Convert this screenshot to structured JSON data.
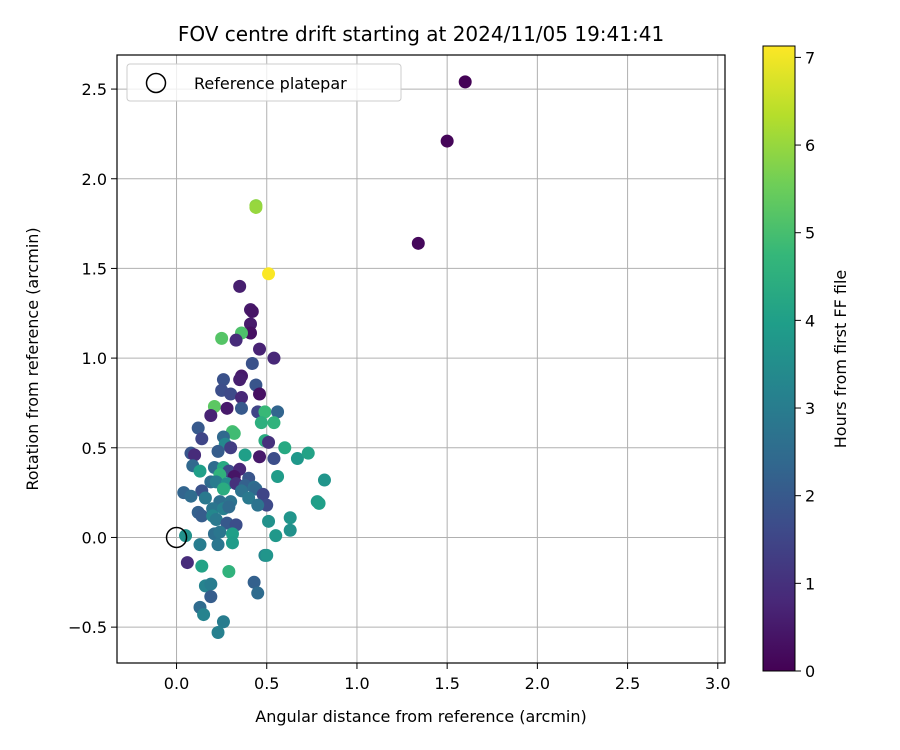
{
  "chart_data": {
    "type": "scatter",
    "title": "FOV centre drift starting at 2024/11/05 19:41:41",
    "xlabel": "Angular distance from reference (arcmin)",
    "ylabel": "Rotation from reference (arcmin)",
    "xlim": [
      -0.33,
      3.04
    ],
    "ylim": [
      -0.7,
      2.69
    ],
    "xticks": [
      0.0,
      0.5,
      1.0,
      1.5,
      2.0,
      2.5,
      3.0
    ],
    "xtick_labels": [
      "0.0",
      "0.5",
      "1.0",
      "1.5",
      "2.0",
      "2.5",
      "3.0"
    ],
    "yticks": [
      -0.5,
      0.0,
      0.5,
      1.0,
      1.5,
      2.0,
      2.5
    ],
    "ytick_labels": [
      "−0.5",
      "0.0",
      "0.5",
      "1.0",
      "1.5",
      "2.0",
      "2.5"
    ],
    "grid": true,
    "legend": {
      "placement": "top-left",
      "entries": [
        "Reference platepar"
      ]
    },
    "reference_point": {
      "x": 0.0,
      "y": 0.0
    },
    "colorbar": {
      "label": "Hours from first FF file",
      "range": [
        0,
        7.13
      ],
      "ticks": [
        0,
        1,
        2,
        3,
        4,
        5,
        6,
        7
      ],
      "tick_labels": [
        "0",
        "1",
        "2",
        "3",
        "4",
        "5",
        "6",
        "7"
      ],
      "colormap": "viridis"
    },
    "points": [
      {
        "x": 1.6,
        "y": 2.54,
        "c": 0.05
      },
      {
        "x": 1.5,
        "y": 2.21,
        "c": 0.1
      },
      {
        "x": 1.34,
        "y": 1.64,
        "c": 0.15
      },
      {
        "x": 0.44,
        "y": 1.85,
        "c": 5.9
      },
      {
        "x": 0.44,
        "y": 1.84,
        "c": 6.0
      },
      {
        "x": 0.51,
        "y": 1.47,
        "c": 7.1
      },
      {
        "x": 0.35,
        "y": 1.4,
        "c": 0.6
      },
      {
        "x": 0.41,
        "y": 1.27,
        "c": 0.5
      },
      {
        "x": 0.42,
        "y": 1.26,
        "c": 0.4
      },
      {
        "x": 0.41,
        "y": 1.19,
        "c": 0.5
      },
      {
        "x": 0.41,
        "y": 1.14,
        "c": 0.3
      },
      {
        "x": 0.36,
        "y": 1.14,
        "c": 5.1
      },
      {
        "x": 0.25,
        "y": 1.11,
        "c": 5.2
      },
      {
        "x": 0.33,
        "y": 1.1,
        "c": 0.9
      },
      {
        "x": 0.46,
        "y": 1.05,
        "c": 0.7
      },
      {
        "x": 0.54,
        "y": 1.0,
        "c": 0.8
      },
      {
        "x": 0.42,
        "y": 0.97,
        "c": 1.8
      },
      {
        "x": 0.36,
        "y": 0.9,
        "c": 0.5
      },
      {
        "x": 0.35,
        "y": 0.88,
        "c": 0.6
      },
      {
        "x": 0.26,
        "y": 0.88,
        "c": 1.8
      },
      {
        "x": 0.25,
        "y": 0.82,
        "c": 1.7
      },
      {
        "x": 0.3,
        "y": 0.8,
        "c": 1.6
      },
      {
        "x": 0.44,
        "y": 0.85,
        "c": 1.9
      },
      {
        "x": 0.46,
        "y": 0.8,
        "c": 0.3
      },
      {
        "x": 0.36,
        "y": 0.78,
        "c": 0.8
      },
      {
        "x": 0.21,
        "y": 0.73,
        "c": 5.3
      },
      {
        "x": 0.28,
        "y": 0.72,
        "c": 0.5
      },
      {
        "x": 0.36,
        "y": 0.72,
        "c": 2.0
      },
      {
        "x": 0.45,
        "y": 0.7,
        "c": 1.5
      },
      {
        "x": 0.49,
        "y": 0.7,
        "c": 4.8
      },
      {
        "x": 0.56,
        "y": 0.7,
        "c": 2.3
      },
      {
        "x": 0.19,
        "y": 0.68,
        "c": 0.7
      },
      {
        "x": 0.47,
        "y": 0.64,
        "c": 4.5
      },
      {
        "x": 0.54,
        "y": 0.64,
        "c": 4.6
      },
      {
        "x": 0.12,
        "y": 0.61,
        "c": 2.0
      },
      {
        "x": 0.31,
        "y": 0.59,
        "c": 5.0
      },
      {
        "x": 0.32,
        "y": 0.58,
        "c": 4.9
      },
      {
        "x": 0.26,
        "y": 0.56,
        "c": 2.4
      },
      {
        "x": 0.14,
        "y": 0.55,
        "c": 1.5
      },
      {
        "x": 0.49,
        "y": 0.54,
        "c": 4.4
      },
      {
        "x": 0.27,
        "y": 0.52,
        "c": 3.3
      },
      {
        "x": 0.3,
        "y": 0.5,
        "c": 1.3
      },
      {
        "x": 0.51,
        "y": 0.53,
        "c": 1.0
      },
      {
        "x": 0.6,
        "y": 0.5,
        "c": 4.3
      },
      {
        "x": 0.08,
        "y": 0.47,
        "c": 1.9
      },
      {
        "x": 0.1,
        "y": 0.46,
        "c": 0.9
      },
      {
        "x": 0.23,
        "y": 0.48,
        "c": 2.1
      },
      {
        "x": 0.38,
        "y": 0.46,
        "c": 4.0
      },
      {
        "x": 0.46,
        "y": 0.45,
        "c": 0.5
      },
      {
        "x": 0.54,
        "y": 0.44,
        "c": 1.7
      },
      {
        "x": 0.67,
        "y": 0.44,
        "c": 3.8
      },
      {
        "x": 0.73,
        "y": 0.47,
        "c": 4.1
      },
      {
        "x": 0.09,
        "y": 0.4,
        "c": 2.4
      },
      {
        "x": 0.13,
        "y": 0.37,
        "c": 4.0
      },
      {
        "x": 0.21,
        "y": 0.39,
        "c": 2.5
      },
      {
        "x": 0.26,
        "y": 0.39,
        "c": 4.3
      },
      {
        "x": 0.29,
        "y": 0.37,
        "c": 1.6
      },
      {
        "x": 0.35,
        "y": 0.38,
        "c": 0.8
      },
      {
        "x": 0.24,
        "y": 0.35,
        "c": 4.6
      },
      {
        "x": 0.32,
        "y": 0.34,
        "c": 0.4
      },
      {
        "x": 0.4,
        "y": 0.33,
        "c": 1.9
      },
      {
        "x": 0.56,
        "y": 0.34,
        "c": 3.9
      },
      {
        "x": 0.19,
        "y": 0.31,
        "c": 2.5
      },
      {
        "x": 0.22,
        "y": 0.31,
        "c": 3.0
      },
      {
        "x": 0.28,
        "y": 0.3,
        "c": 3.5
      },
      {
        "x": 0.33,
        "y": 0.3,
        "c": 1.0
      },
      {
        "x": 0.38,
        "y": 0.29,
        "c": 2.2
      },
      {
        "x": 0.43,
        "y": 0.28,
        "c": 2.6
      },
      {
        "x": 0.82,
        "y": 0.32,
        "c": 3.7
      },
      {
        "x": 0.04,
        "y": 0.25,
        "c": 2.3
      },
      {
        "x": 0.14,
        "y": 0.26,
        "c": 1.8
      },
      {
        "x": 0.26,
        "y": 0.27,
        "c": 4.4
      },
      {
        "x": 0.36,
        "y": 0.26,
        "c": 2.7
      },
      {
        "x": 0.44,
        "y": 0.27,
        "c": 2.4
      },
      {
        "x": 0.48,
        "y": 0.24,
        "c": 1.5
      },
      {
        "x": 0.08,
        "y": 0.23,
        "c": 2.5
      },
      {
        "x": 0.16,
        "y": 0.22,
        "c": 2.9
      },
      {
        "x": 0.24,
        "y": 0.2,
        "c": 2.6
      },
      {
        "x": 0.3,
        "y": 0.2,
        "c": 2.7
      },
      {
        "x": 0.4,
        "y": 0.22,
        "c": 2.9
      },
      {
        "x": 0.5,
        "y": 0.18,
        "c": 1.6
      },
      {
        "x": 0.45,
        "y": 0.18,
        "c": 2.7
      },
      {
        "x": 0.78,
        "y": 0.2,
        "c": 3.9
      },
      {
        "x": 0.79,
        "y": 0.19,
        "c": 4.0
      },
      {
        "x": 0.12,
        "y": 0.14,
        "c": 2.2
      },
      {
        "x": 0.2,
        "y": 0.16,
        "c": 2.8
      },
      {
        "x": 0.26,
        "y": 0.16,
        "c": 3.1
      },
      {
        "x": 0.29,
        "y": 0.17,
        "c": 2.5
      },
      {
        "x": 0.14,
        "y": 0.12,
        "c": 2.1
      },
      {
        "x": 0.2,
        "y": 0.12,
        "c": 3.3
      },
      {
        "x": 0.22,
        "y": 0.1,
        "c": 2.9
      },
      {
        "x": 0.28,
        "y": 0.08,
        "c": 2.0
      },
      {
        "x": 0.33,
        "y": 0.07,
        "c": 1.7
      },
      {
        "x": 0.51,
        "y": 0.09,
        "c": 3.6
      },
      {
        "x": 0.63,
        "y": 0.11,
        "c": 3.7
      },
      {
        "x": 0.05,
        "y": 0.01,
        "c": 3.6
      },
      {
        "x": 0.21,
        "y": 0.02,
        "c": 2.6
      },
      {
        "x": 0.24,
        "y": 0.03,
        "c": 2.8
      },
      {
        "x": 0.31,
        "y": 0.02,
        "c": 4.0
      },
      {
        "x": 0.55,
        "y": 0.01,
        "c": 3.8
      },
      {
        "x": 0.63,
        "y": 0.04,
        "c": 3.6
      },
      {
        "x": 0.13,
        "y": -0.04,
        "c": 3.0
      },
      {
        "x": 0.23,
        "y": -0.04,
        "c": 2.8
      },
      {
        "x": 0.31,
        "y": -0.03,
        "c": 3.9
      },
      {
        "x": 0.49,
        "y": -0.1,
        "c": 3.3
      },
      {
        "x": 0.5,
        "y": -0.1,
        "c": 3.7
      },
      {
        "x": 0.06,
        "y": -0.14,
        "c": 0.9
      },
      {
        "x": 0.14,
        "y": -0.16,
        "c": 4.1
      },
      {
        "x": 0.29,
        "y": -0.19,
        "c": 4.6
      },
      {
        "x": 0.16,
        "y": -0.27,
        "c": 3.2
      },
      {
        "x": 0.19,
        "y": -0.26,
        "c": 3.0
      },
      {
        "x": 0.43,
        "y": -0.25,
        "c": 2.2
      },
      {
        "x": 0.19,
        "y": -0.33,
        "c": 2.1
      },
      {
        "x": 0.45,
        "y": -0.31,
        "c": 2.5
      },
      {
        "x": 0.13,
        "y": -0.39,
        "c": 2.5
      },
      {
        "x": 0.15,
        "y": -0.43,
        "c": 3.2
      },
      {
        "x": 0.26,
        "y": -0.47,
        "c": 3.0
      },
      {
        "x": 0.23,
        "y": -0.53,
        "c": 3.1
      }
    ]
  },
  "colors": {
    "grid": "#b0b0b0",
    "axes": "#000000",
    "legend_border": "#cccccc",
    "viridis_stops": [
      "#440154",
      "#482878",
      "#3e4989",
      "#31688e",
      "#26828e",
      "#1f9e89",
      "#35b779",
      "#6ece58",
      "#b5de2b",
      "#fde725"
    ]
  }
}
